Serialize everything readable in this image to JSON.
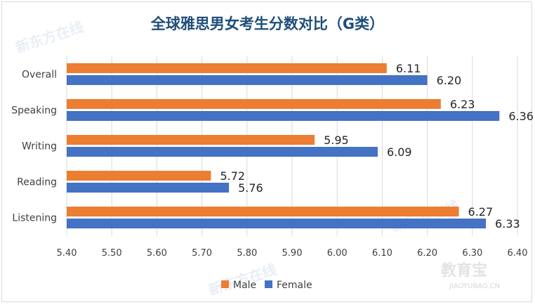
{
  "title": "全球雅思男女考生分数对比（G类）",
  "watermarks": [
    "新东方在线",
    "教育宝",
    "JIAOYUBAO.CN"
  ],
  "colors": {
    "male": "#ed7d31",
    "female": "#4472c4",
    "title": "#1f4e79"
  },
  "chart_data": {
    "type": "bar",
    "orientation": "horizontal",
    "categories": [
      "Overall",
      "Speaking",
      "Writing",
      "Reading",
      "Listening"
    ],
    "series": [
      {
        "name": "Male",
        "values": [
          6.11,
          6.23,
          5.95,
          5.72,
          6.27
        ]
      },
      {
        "name": "Female",
        "values": [
          6.2,
          6.36,
          6.09,
          5.76,
          6.33
        ]
      }
    ],
    "data_labels": {
      "Male": [
        "6.11",
        "6.23",
        "5.95",
        "5.72",
        "6.27"
      ],
      "Female": [
        "6.20",
        "6.36",
        "6.09",
        "5.76",
        "6.33"
      ]
    },
    "xlim": [
      5.4,
      6.4
    ],
    "xticks": [
      "5.40",
      "5.50",
      "5.60",
      "5.70",
      "5.80",
      "5.90",
      "6.00",
      "6.10",
      "6.20",
      "6.30",
      "6.40"
    ],
    "grid": "vertical",
    "legend": "bottom"
  }
}
